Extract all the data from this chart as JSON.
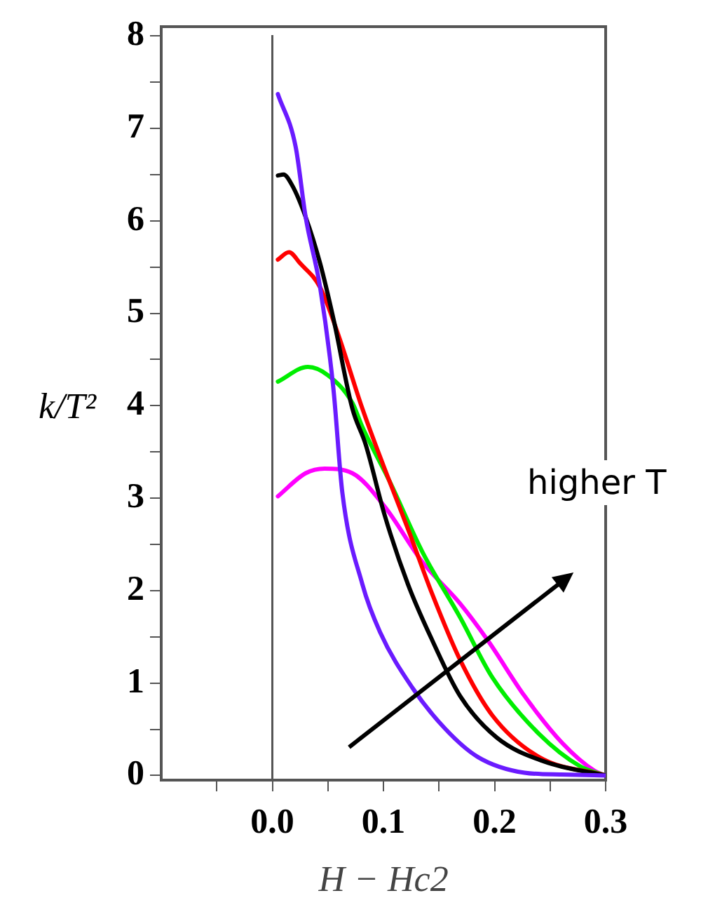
{
  "chart_data": {
    "type": "line",
    "xlabel": "H − Hc2",
    "ylabel": "k/T²",
    "xlim": [
      -0.1,
      0.3
    ],
    "ylim": [
      -0.05,
      8.1
    ],
    "xticks": [
      {
        "value": -0.05,
        "label": null
      },
      {
        "value": 0,
        "label": "0.0"
      },
      {
        "value": 0.05,
        "label": null
      },
      0.1,
      {
        "value": 0.15,
        "label": null
      },
      0.2,
      {
        "value": 0.25,
        "label": null
      },
      0.3
    ],
    "yticks": [
      0,
      {
        "value": 0.5,
        "label": null
      },
      1,
      {
        "value": 1.5,
        "label": null
      },
      2,
      {
        "value": 2.5,
        "label": null
      },
      3,
      {
        "value": 3.5,
        "label": null
      },
      4,
      {
        "value": 4.5,
        "label": null
      },
      5,
      {
        "value": 5.5,
        "label": null
      },
      6,
      {
        "value": 6.5,
        "label": null
      },
      7,
      {
        "value": 7.5,
        "label": null
      },
      8
    ],
    "grid": false,
    "legend": false,
    "marker": "none",
    "line_style": "solid",
    "ref_lines": [
      {
        "axis": "x",
        "value": 0,
        "color": "#555555"
      }
    ],
    "annotations": [
      "higher T"
    ],
    "series": [
      {
        "color": "#6a1bff",
        "x": [
          0.005,
          0.021,
          0.03,
          0.043,
          0.055,
          0.063,
          0.081,
          0.097,
          0.126,
          0.156,
          0.185,
          0.227,
          0.26,
          0.3
        ],
        "values": [
          7.37,
          6.8,
          6.04,
          5.28,
          4.18,
          3.06,
          2.07,
          1.55,
          0.95,
          0.5,
          0.2,
          0.03,
          0.01,
          0
        ]
      },
      {
        "color": "#000000",
        "x": [
          0.005,
          0.01,
          0.018,
          0.03,
          0.043,
          0.055,
          0.072,
          0.084,
          0.101,
          0.122,
          0.144,
          0.169,
          0.202,
          0.245,
          0.3
        ],
        "values": [
          6.49,
          6.5,
          6.38,
          6.04,
          5.54,
          4.94,
          3.97,
          3.58,
          2.82,
          2.07,
          1.46,
          0.86,
          0.41,
          0.15,
          0
        ]
      },
      {
        "color": "#ff0000",
        "x": [
          0.005,
          0.015,
          0.025,
          0.043,
          0.059,
          0.081,
          0.101,
          0.122,
          0.144,
          0.169,
          0.198,
          0.24,
          0.3
        ],
        "values": [
          5.58,
          5.66,
          5.54,
          5.28,
          4.78,
          3.97,
          3.32,
          2.67,
          1.96,
          1.25,
          0.65,
          0.2,
          0
        ]
      },
      {
        "color": "#00ee00",
        "x": [
          0.005,
          0.032,
          0.05,
          0.072,
          0.081,
          0.106,
          0.135,
          0.169,
          0.198,
          0.24,
          0.277,
          0.3
        ],
        "values": [
          4.26,
          4.42,
          4.33,
          4.03,
          3.77,
          3.17,
          2.42,
          1.71,
          1.06,
          0.45,
          0.1,
          0
        ]
      },
      {
        "color": "#ff00ff",
        "x": [
          0.005,
          0.03,
          0.047,
          0.072,
          0.101,
          0.135,
          0.169,
          0.194,
          0.227,
          0.261,
          0.29,
          0.3
        ],
        "values": [
          3.02,
          3.27,
          3.32,
          3.27,
          2.91,
          2.31,
          1.86,
          1.46,
          0.86,
          0.35,
          0.05,
          0
        ]
      }
    ]
  }
}
